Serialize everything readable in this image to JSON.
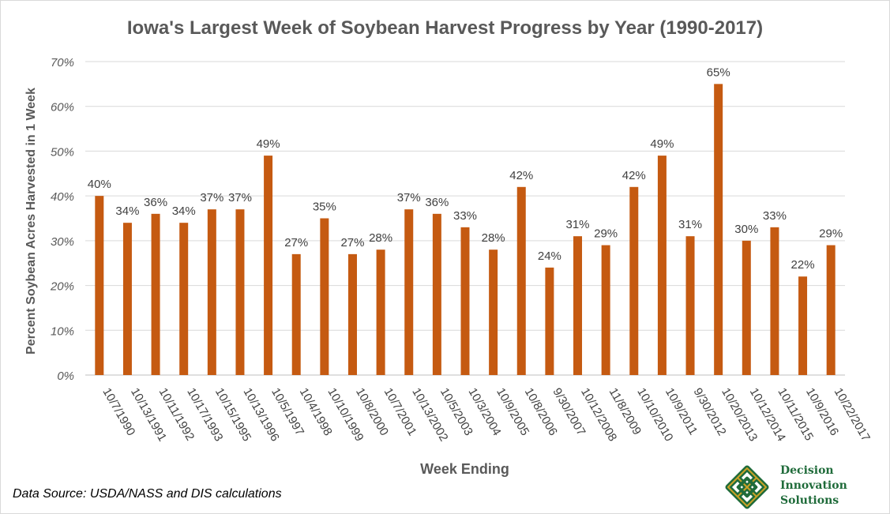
{
  "chart_data": {
    "type": "bar",
    "title": "Iowa's Largest Week of Soybean Harvest Progress by Year (1990-2017)",
    "xlabel": "Week Ending",
    "ylabel": "Percent Soybean Acres Harvested in 1 Week",
    "categories": [
      "10/7/1990",
      "10/13/1991",
      "10/11/1992",
      "10/17/1993",
      "10/15/1995",
      "10/13/1996",
      "10/5/1997",
      "10/4/1998",
      "10/10/1999",
      "10/8/2000",
      "10/7/2001",
      "10/13/2002",
      "10/5/2003",
      "10/3/2004",
      "10/9/2005",
      "10/8/2006",
      "9/30/2007",
      "10/12/2008",
      "11/8/2009",
      "10/10/2010",
      "10/9/2011",
      "9/30/2012",
      "10/20/2013",
      "10/12/2014",
      "10/11/2015",
      "10/9/2016",
      "10/22/2017"
    ],
    "values": [
      40,
      34,
      36,
      34,
      37,
      37,
      49,
      27,
      35,
      27,
      28,
      37,
      36,
      33,
      28,
      42,
      24,
      31,
      29,
      42,
      49,
      31,
      65,
      30,
      33,
      22,
      29
    ],
    "data_labels": [
      "40%",
      "34%",
      "36%",
      "34%",
      "37%",
      "37%",
      "49%",
      "27%",
      "35%",
      "27%",
      "28%",
      "37%",
      "36%",
      "33%",
      "28%",
      "42%",
      "24%",
      "31%",
      "29%",
      "42%",
      "49%",
      "31%",
      "65%",
      "30%",
      "33%",
      "22%",
      "29%"
    ],
    "ylim": [
      0,
      70
    ],
    "yticks": [
      0,
      10,
      20,
      30,
      40,
      50,
      60,
      70
    ],
    "ytick_labels": [
      "0%",
      "10%",
      "20%",
      "30%",
      "40%",
      "50%",
      "60%",
      "70%"
    ],
    "grid": true,
    "bar_color": "#c55a11"
  },
  "source_note": "Data Source: USDA/NASS and DIS calculations",
  "logo": {
    "lines": [
      "Decision",
      "Innovation",
      "Solutions"
    ],
    "colors": {
      "green": "#1f6b3a",
      "gold": "#c9a227"
    }
  }
}
